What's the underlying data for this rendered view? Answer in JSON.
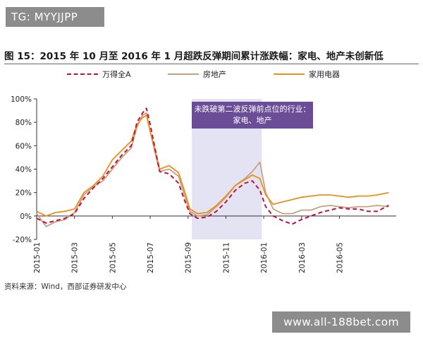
{
  "tag": {
    "text": "TG: MYYJJPP"
  },
  "watermark": {
    "text": "www.all-188bet.com"
  },
  "figure": {
    "title": "图 15：2015 年 10 月至 2016 年 1 月超跌反弹期间累计涨跌幅：家电、地产未创新低",
    "source": "资料来源：Wind，西部证券研发中心"
  },
  "colors": {
    "wandequan": "#c0133a",
    "fangdichan": "#c7a184",
    "jiayongdianqi": "#e8901c",
    "shade": "#e4e3f4",
    "annot_bg": "#6b4d97"
  },
  "chart_data": {
    "type": "line",
    "title": "2015 年 10 月至 2016 年 1 月超跌反弹期间累计涨跌幅：家电、地产未创新低",
    "xlabel": "",
    "ylabel": "",
    "ylim": [
      -20,
      100
    ],
    "yticks": [
      -20,
      0,
      20,
      40,
      60,
      80,
      100
    ],
    "ytick_labels": [
      "-20%",
      "0%",
      "20%",
      "40%",
      "60%",
      "80%",
      "100%"
    ],
    "xlim": [
      0,
      19
    ],
    "xticks": [
      0,
      2,
      4,
      6,
      8,
      10,
      12,
      14,
      16
    ],
    "xtick_labels": [
      "2015-01",
      "2015-03",
      "2015-05",
      "2015-07",
      "2015-09",
      "2015-11",
      "2016-01",
      "2016-03",
      "2016-05"
    ],
    "legend_position": "top",
    "shaded_region": {
      "x_start": 8.2,
      "x_end": 11.9,
      "label": "未跌破第二波反弹前点位的行业：家电、地产"
    },
    "series": [
      {
        "name": "万得全A",
        "style": "dashed",
        "x": [
          0,
          0.5,
          1,
          1.5,
          2,
          2.5,
          3,
          3.5,
          4,
          4.5,
          5,
          5.3,
          5.6,
          5.8,
          6.0,
          6.2,
          6.5,
          7,
          7.5,
          7.8,
          8.1,
          8.5,
          9,
          9.5,
          10,
          10.5,
          11,
          11.4,
          11.8,
          12.1,
          12.5,
          13,
          13.5,
          14,
          14.5,
          15,
          15.5,
          16,
          16.5,
          17,
          17.5,
          18,
          18.6
        ],
        "values": [
          -2,
          -6,
          -4,
          -2,
          2,
          15,
          24,
          32,
          42,
          52,
          60,
          80,
          88,
          92,
          78,
          62,
          38,
          36,
          28,
          14,
          2,
          -2,
          -1,
          4,
          12,
          22,
          28,
          30,
          22,
          8,
          0,
          -4,
          -7,
          -3,
          0,
          3,
          5,
          7,
          6,
          6,
          4,
          4,
          9
        ]
      },
      {
        "name": "房地产",
        "style": "solid",
        "x": [
          0,
          0.5,
          1,
          1.5,
          2,
          2.5,
          3,
          3.5,
          4,
          4.5,
          5,
          5.3,
          5.6,
          5.8,
          6.0,
          6.2,
          6.5,
          7,
          7.5,
          7.8,
          8.1,
          8.5,
          9,
          9.5,
          10,
          10.5,
          11,
          11.4,
          11.8,
          12.1,
          12.5,
          13,
          13.5,
          14,
          14.5,
          15,
          15.5,
          16,
          16.5,
          17,
          17.5,
          18,
          18.6
        ],
        "values": [
          2,
          -9,
          -5,
          -3,
          3,
          18,
          25,
          30,
          40,
          50,
          58,
          76,
          86,
          88,
          72,
          58,
          38,
          40,
          34,
          18,
          4,
          0,
          1,
          8,
          16,
          26,
          32,
          38,
          46,
          20,
          6,
          2,
          2,
          5,
          5,
          8,
          9,
          8,
          7,
          8,
          8,
          9,
          8
        ]
      },
      {
        "name": "家用电器",
        "style": "solid",
        "x": [
          0,
          0.5,
          1,
          1.5,
          2,
          2.5,
          3,
          3.5,
          4,
          4.5,
          5,
          5.3,
          5.6,
          5.8,
          6.0,
          6.2,
          6.5,
          7,
          7.5,
          7.8,
          8.1,
          8.5,
          9,
          9.5,
          10,
          10.5,
          11,
          11.4,
          11.8,
          12.1,
          12.5,
          13,
          13.5,
          14,
          14.5,
          15,
          15.5,
          16,
          16.5,
          17,
          17.5,
          18,
          18.6
        ],
        "values": [
          4,
          0,
          3,
          4,
          6,
          20,
          26,
          34,
          48,
          56,
          64,
          78,
          84,
          86,
          72,
          60,
          40,
          43,
          37,
          22,
          6,
          2,
          3,
          9,
          17,
          26,
          31,
          35,
          32,
          18,
          10,
          12,
          14,
          16,
          17,
          18,
          18,
          17,
          16,
          17,
          17,
          18,
          20
        ]
      }
    ]
  }
}
